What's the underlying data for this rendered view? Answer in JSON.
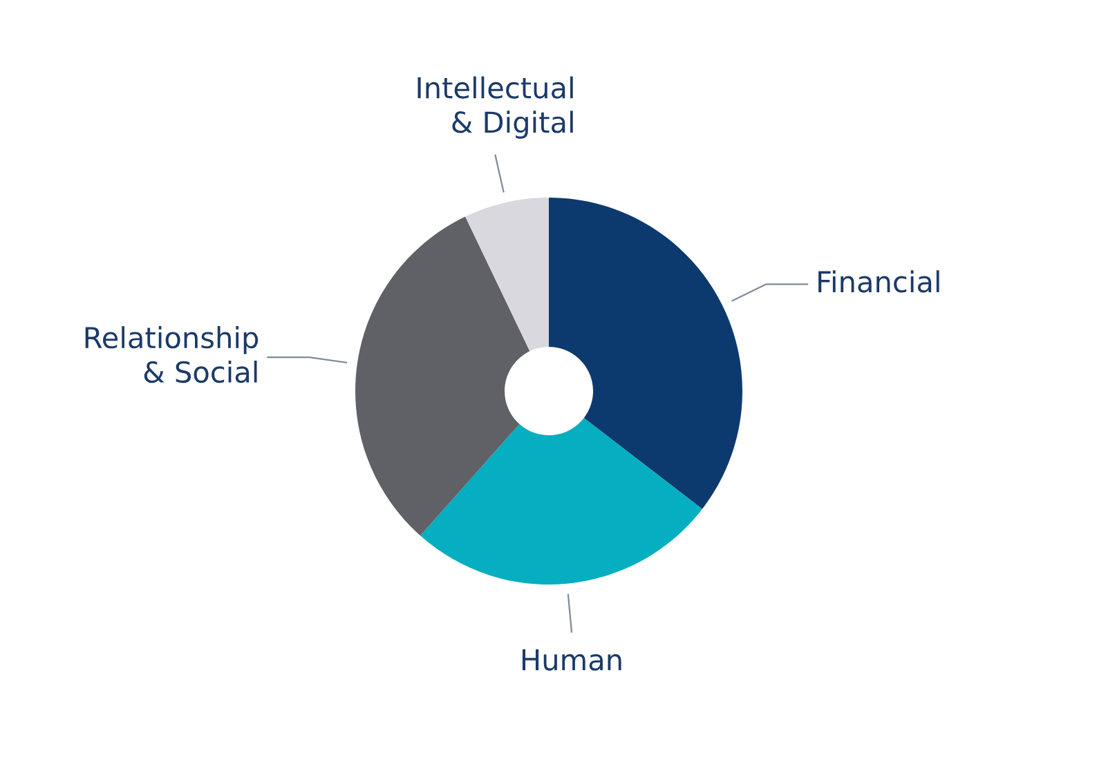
{
  "chart_data": {
    "type": "donut",
    "categories": [
      "Financial",
      "Human",
      "Relationship\n& Social",
      "Intellectual\n& Digital"
    ],
    "values": [
      35.4,
      26.1,
      31.3,
      7.1
    ],
    "colors": [
      "#0d3a6e",
      "#05aec0",
      "#5f6166",
      "#d8d8de"
    ],
    "legend": false
  }
}
